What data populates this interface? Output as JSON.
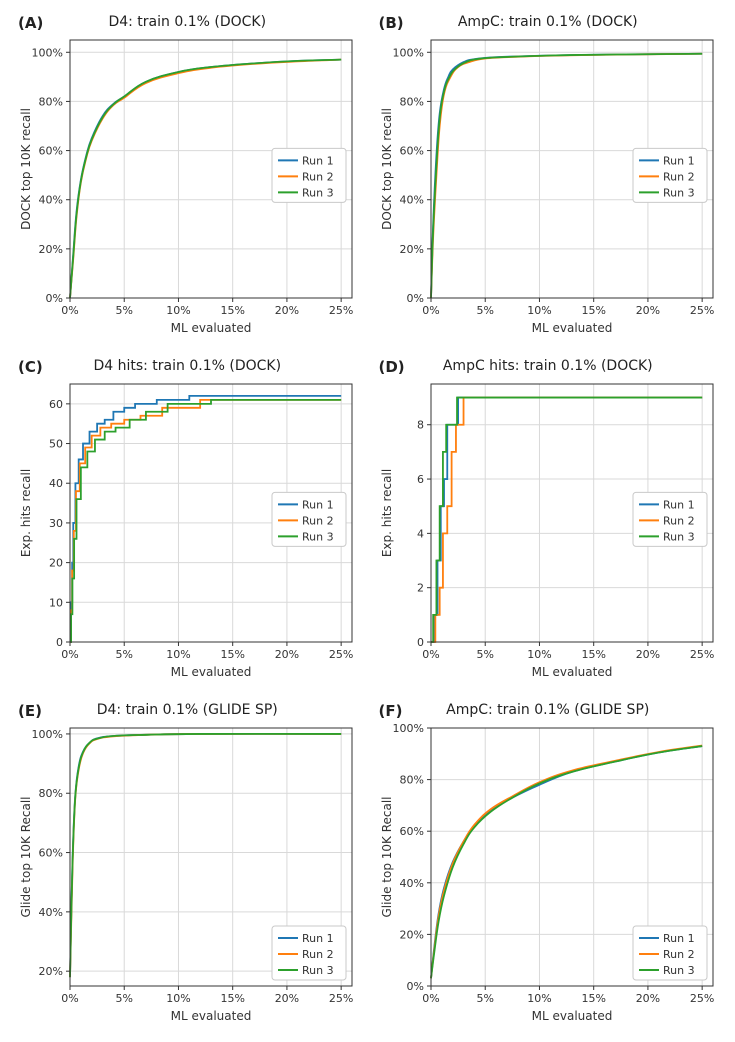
{
  "global": {
    "xlabel": "ML evaluated",
    "xlim": [
      0,
      26
    ],
    "xticks": [
      0,
      5,
      10,
      15,
      20,
      25
    ],
    "xtick_labels": [
      "0%",
      "5%",
      "10%",
      "15%",
      "20%",
      "25%"
    ],
    "colors": {
      "run1": "#1f77b4",
      "run2": "#ff7f0e",
      "run3": "#2ca02c",
      "grid": "#d9d9d9",
      "axis": "#333333",
      "bg": "#ffffff"
    },
    "legend_labels": [
      "Run 1",
      "Run 2",
      "Run 3"
    ],
    "line_width": 1.8,
    "title_fontsize": 14,
    "label_fontsize": 12,
    "tick_fontsize": 11
  },
  "panels": [
    {
      "id": "A",
      "title": "D4: train 0.1%   (DOCK)",
      "ylabel": "DOCK top 10K recall",
      "ylim": [
        0,
        105
      ],
      "yticks": [
        0,
        20,
        40,
        60,
        80,
        100
      ],
      "ytick_labels": [
        "0%",
        "20%",
        "40%",
        "60%",
        "80%",
        "100%"
      ],
      "interp": "curve",
      "legend_pos": "right-mid",
      "series": {
        "run1": [
          [
            0,
            0
          ],
          [
            0.3,
            18
          ],
          [
            0.6,
            35
          ],
          [
            1,
            48
          ],
          [
            1.5,
            58
          ],
          [
            2,
            65
          ],
          [
            3,
            74
          ],
          [
            4,
            79
          ],
          [
            5,
            82
          ],
          [
            7,
            88
          ],
          [
            10,
            92
          ],
          [
            13,
            94
          ],
          [
            17,
            95.5
          ],
          [
            21,
            96.5
          ],
          [
            25,
            97
          ]
        ],
        "run2": [
          [
            0,
            0
          ],
          [
            0.3,
            16
          ],
          [
            0.6,
            33
          ],
          [
            1,
            47
          ],
          [
            1.5,
            57
          ],
          [
            2,
            64
          ],
          [
            3,
            73
          ],
          [
            4,
            78.5
          ],
          [
            5,
            81.5
          ],
          [
            7,
            87.5
          ],
          [
            10,
            91.5
          ],
          [
            13,
            93.7
          ],
          [
            17,
            95.3
          ],
          [
            21,
            96.3
          ],
          [
            25,
            97
          ]
        ],
        "run3": [
          [
            0,
            0
          ],
          [
            0.3,
            17
          ],
          [
            0.6,
            34
          ],
          [
            1,
            47.5
          ],
          [
            1.5,
            57.5
          ],
          [
            2,
            64.5
          ],
          [
            3,
            73.5
          ],
          [
            4,
            78.8
          ],
          [
            5,
            82
          ],
          [
            7,
            88
          ],
          [
            10,
            92
          ],
          [
            13,
            94
          ],
          [
            17,
            95.5
          ],
          [
            21,
            96.5
          ],
          [
            25,
            97
          ]
        ]
      }
    },
    {
      "id": "B",
      "title": "AmpC: train 0.1%   (DOCK)",
      "ylabel": "DOCK top 10K recall",
      "ylim": [
        0,
        105
      ],
      "yticks": [
        0,
        20,
        40,
        60,
        80,
        100
      ],
      "ytick_labels": [
        "0%",
        "20%",
        "40%",
        "60%",
        "80%",
        "100%"
      ],
      "interp": "curve",
      "legend_pos": "right-mid",
      "series": {
        "run1": [
          [
            0,
            0
          ],
          [
            0.2,
            30
          ],
          [
            0.5,
            58
          ],
          [
            0.8,
            75
          ],
          [
            1.2,
            85
          ],
          [
            1.6,
            90
          ],
          [
            2,
            93
          ],
          [
            3,
            96
          ],
          [
            4,
            97.2
          ],
          [
            6,
            98
          ],
          [
            10,
            98.6
          ],
          [
            15,
            99
          ],
          [
            20,
            99.2
          ],
          [
            25,
            99.4
          ]
        ],
        "run2": [
          [
            0,
            0
          ],
          [
            0.2,
            25
          ],
          [
            0.5,
            50
          ],
          [
            0.8,
            70
          ],
          [
            1.2,
            83
          ],
          [
            1.8,
            90
          ],
          [
            2.5,
            94
          ],
          [
            3.5,
            96
          ],
          [
            5,
            97.5
          ],
          [
            8,
            98.2
          ],
          [
            12,
            98.7
          ],
          [
            18,
            99.1
          ],
          [
            25,
            99.4
          ]
        ],
        "run3": [
          [
            0,
            0
          ],
          [
            0.2,
            28
          ],
          [
            0.5,
            54
          ],
          [
            0.8,
            73
          ],
          [
            1.2,
            84
          ],
          [
            1.7,
            90
          ],
          [
            2.3,
            93.5
          ],
          [
            3.2,
            96
          ],
          [
            4.5,
            97.4
          ],
          [
            7,
            98.1
          ],
          [
            11,
            98.7
          ],
          [
            17,
            99.1
          ],
          [
            25,
            99.4
          ]
        ]
      }
    },
    {
      "id": "C",
      "title": "D4 hits: train 0.1%   (DOCK)",
      "ylabel": "Exp. hits recall",
      "ylim": [
        0,
        65
      ],
      "yticks": [
        0,
        10,
        20,
        30,
        40,
        50,
        60
      ],
      "ytick_labels": [
        "0",
        "10",
        "20",
        "30",
        "40",
        "50",
        "60"
      ],
      "interp": "step",
      "legend_pos": "right-mid",
      "series": {
        "run1": [
          [
            0,
            0
          ],
          [
            0.1,
            10
          ],
          [
            0.2,
            20
          ],
          [
            0.3,
            30
          ],
          [
            0.5,
            40
          ],
          [
            0.8,
            46
          ],
          [
            1.2,
            50
          ],
          [
            1.8,
            53
          ],
          [
            2.5,
            55
          ],
          [
            3.2,
            56
          ],
          [
            4,
            58
          ],
          [
            5,
            59
          ],
          [
            6,
            60
          ],
          [
            8,
            61
          ],
          [
            11,
            62
          ],
          [
            25,
            62
          ]
        ],
        "run2": [
          [
            0,
            0
          ],
          [
            0.1,
            8
          ],
          [
            0.2,
            18
          ],
          [
            0.35,
            28
          ],
          [
            0.55,
            38
          ],
          [
            0.9,
            45
          ],
          [
            1.4,
            49
          ],
          [
            2,
            52
          ],
          [
            2.8,
            54
          ],
          [
            3.8,
            55
          ],
          [
            5,
            56
          ],
          [
            6.5,
            57
          ],
          [
            8.5,
            59
          ],
          [
            12,
            61
          ],
          [
            25,
            61
          ]
        ],
        "run3": [
          [
            0,
            0
          ],
          [
            0.1,
            7
          ],
          [
            0.22,
            16
          ],
          [
            0.38,
            26
          ],
          [
            0.6,
            36
          ],
          [
            1,
            44
          ],
          [
            1.6,
            48
          ],
          [
            2.3,
            51
          ],
          [
            3.2,
            53
          ],
          [
            4.2,
            54
          ],
          [
            5.5,
            56
          ],
          [
            7,
            58
          ],
          [
            9,
            60
          ],
          [
            13,
            61
          ],
          [
            25,
            61
          ]
        ]
      }
    },
    {
      "id": "D",
      "title": "AmpC hits: train 0.1%   (DOCK)",
      "ylabel": "Exp. hits recall",
      "ylim": [
        0,
        9.5
      ],
      "yticks": [
        0,
        2,
        4,
        6,
        8
      ],
      "ytick_labels": [
        "0",
        "2",
        "4",
        "6",
        "8"
      ],
      "interp": "step",
      "legend_pos": "right-mid",
      "series": {
        "run1": [
          [
            0,
            0
          ],
          [
            0.3,
            1
          ],
          [
            0.6,
            3
          ],
          [
            0.9,
            5
          ],
          [
            1.2,
            6
          ],
          [
            1.5,
            8
          ],
          [
            2.2,
            8
          ],
          [
            2.5,
            9
          ],
          [
            25,
            9
          ]
        ],
        "run2": [
          [
            0,
            0
          ],
          [
            0.4,
            1
          ],
          [
            0.8,
            2
          ],
          [
            1.1,
            4
          ],
          [
            1.5,
            5
          ],
          [
            1.9,
            7
          ],
          [
            2.3,
            8
          ],
          [
            3.0,
            9
          ],
          [
            25,
            9
          ]
        ],
        "run3": [
          [
            0,
            0
          ],
          [
            0.2,
            1
          ],
          [
            0.5,
            3
          ],
          [
            0.8,
            5
          ],
          [
            1.1,
            7
          ],
          [
            1.4,
            8
          ],
          [
            2.0,
            8
          ],
          [
            2.4,
            9
          ],
          [
            25,
            9
          ]
        ]
      }
    },
    {
      "id": "E",
      "title": "D4: train 0.1%   (GLIDE SP)",
      "ylabel": "Glide top 10K Recall",
      "ylim": [
        15,
        102
      ],
      "yticks": [
        20,
        40,
        60,
        80,
        100
      ],
      "ytick_labels": [
        "20%",
        "40%",
        "60%",
        "80%",
        "100%"
      ],
      "interp": "curve",
      "legend_pos": "right-bottom",
      "series": {
        "run1": [
          [
            0,
            18
          ],
          [
            0.15,
            45
          ],
          [
            0.3,
            65
          ],
          [
            0.5,
            80
          ],
          [
            0.8,
            89
          ],
          [
            1.2,
            94
          ],
          [
            1.8,
            97
          ],
          [
            2.5,
            98.5
          ],
          [
            4,
            99.3
          ],
          [
            7,
            99.7
          ],
          [
            12,
            100
          ],
          [
            25,
            100
          ]
        ],
        "run2": [
          [
            0,
            18
          ],
          [
            0.15,
            42
          ],
          [
            0.3,
            63
          ],
          [
            0.5,
            79
          ],
          [
            0.8,
            88
          ],
          [
            1.2,
            93.5
          ],
          [
            1.8,
            96.8
          ],
          [
            2.5,
            98.3
          ],
          [
            4,
            99.2
          ],
          [
            7,
            99.7
          ],
          [
            12,
            100
          ],
          [
            25,
            100
          ]
        ],
        "run3": [
          [
            0,
            18
          ],
          [
            0.15,
            44
          ],
          [
            0.3,
            64
          ],
          [
            0.5,
            79.5
          ],
          [
            0.8,
            88.5
          ],
          [
            1.2,
            93.8
          ],
          [
            1.8,
            97
          ],
          [
            2.5,
            98.4
          ],
          [
            4,
            99.3
          ],
          [
            7,
            99.7
          ],
          [
            12,
            100
          ],
          [
            25,
            100
          ]
        ]
      }
    },
    {
      "id": "F",
      "title": "AmpC: train 0.1%   (GLIDE SP)",
      "ylabel": "Glide top 10K Recall",
      "ylim": [
        0,
        100
      ],
      "yticks": [
        0,
        20,
        40,
        60,
        80,
        100
      ],
      "ytick_labels": [
        "0%",
        "20%",
        "40%",
        "60%",
        "80%",
        "100%"
      ],
      "interp": "curve",
      "legend_pos": "right-bottom",
      "series": {
        "run1": [
          [
            0,
            3
          ],
          [
            0.3,
            15
          ],
          [
            0.7,
            28
          ],
          [
            1.2,
            38
          ],
          [
            2,
            48
          ],
          [
            3,
            56
          ],
          [
            4,
            62
          ],
          [
            5.5,
            68
          ],
          [
            7.5,
            73
          ],
          [
            10,
            78
          ],
          [
            13,
            83
          ],
          [
            17,
            87
          ],
          [
            21,
            90.5
          ],
          [
            25,
            93
          ]
        ],
        "run2": [
          [
            0,
            3
          ],
          [
            0.3,
            14
          ],
          [
            0.7,
            27
          ],
          [
            1.2,
            37
          ],
          [
            2,
            47.5
          ],
          [
            3,
            56
          ],
          [
            4,
            62.5
          ],
          [
            5.5,
            68.5
          ],
          [
            7.5,
            73.5
          ],
          [
            10,
            79
          ],
          [
            13,
            83.5
          ],
          [
            17,
            87.3
          ],
          [
            21,
            90.7
          ],
          [
            25,
            93.2
          ]
        ],
        "run3": [
          [
            0,
            3
          ],
          [
            0.3,
            13
          ],
          [
            0.7,
            25
          ],
          [
            1.2,
            35
          ],
          [
            2,
            46
          ],
          [
            3,
            55
          ],
          [
            4,
            61.5
          ],
          [
            5.5,
            67.5
          ],
          [
            7.5,
            73
          ],
          [
            10,
            78.5
          ],
          [
            13,
            83
          ],
          [
            17,
            87
          ],
          [
            21,
            90.5
          ],
          [
            25,
            93
          ]
        ]
      }
    }
  ]
}
